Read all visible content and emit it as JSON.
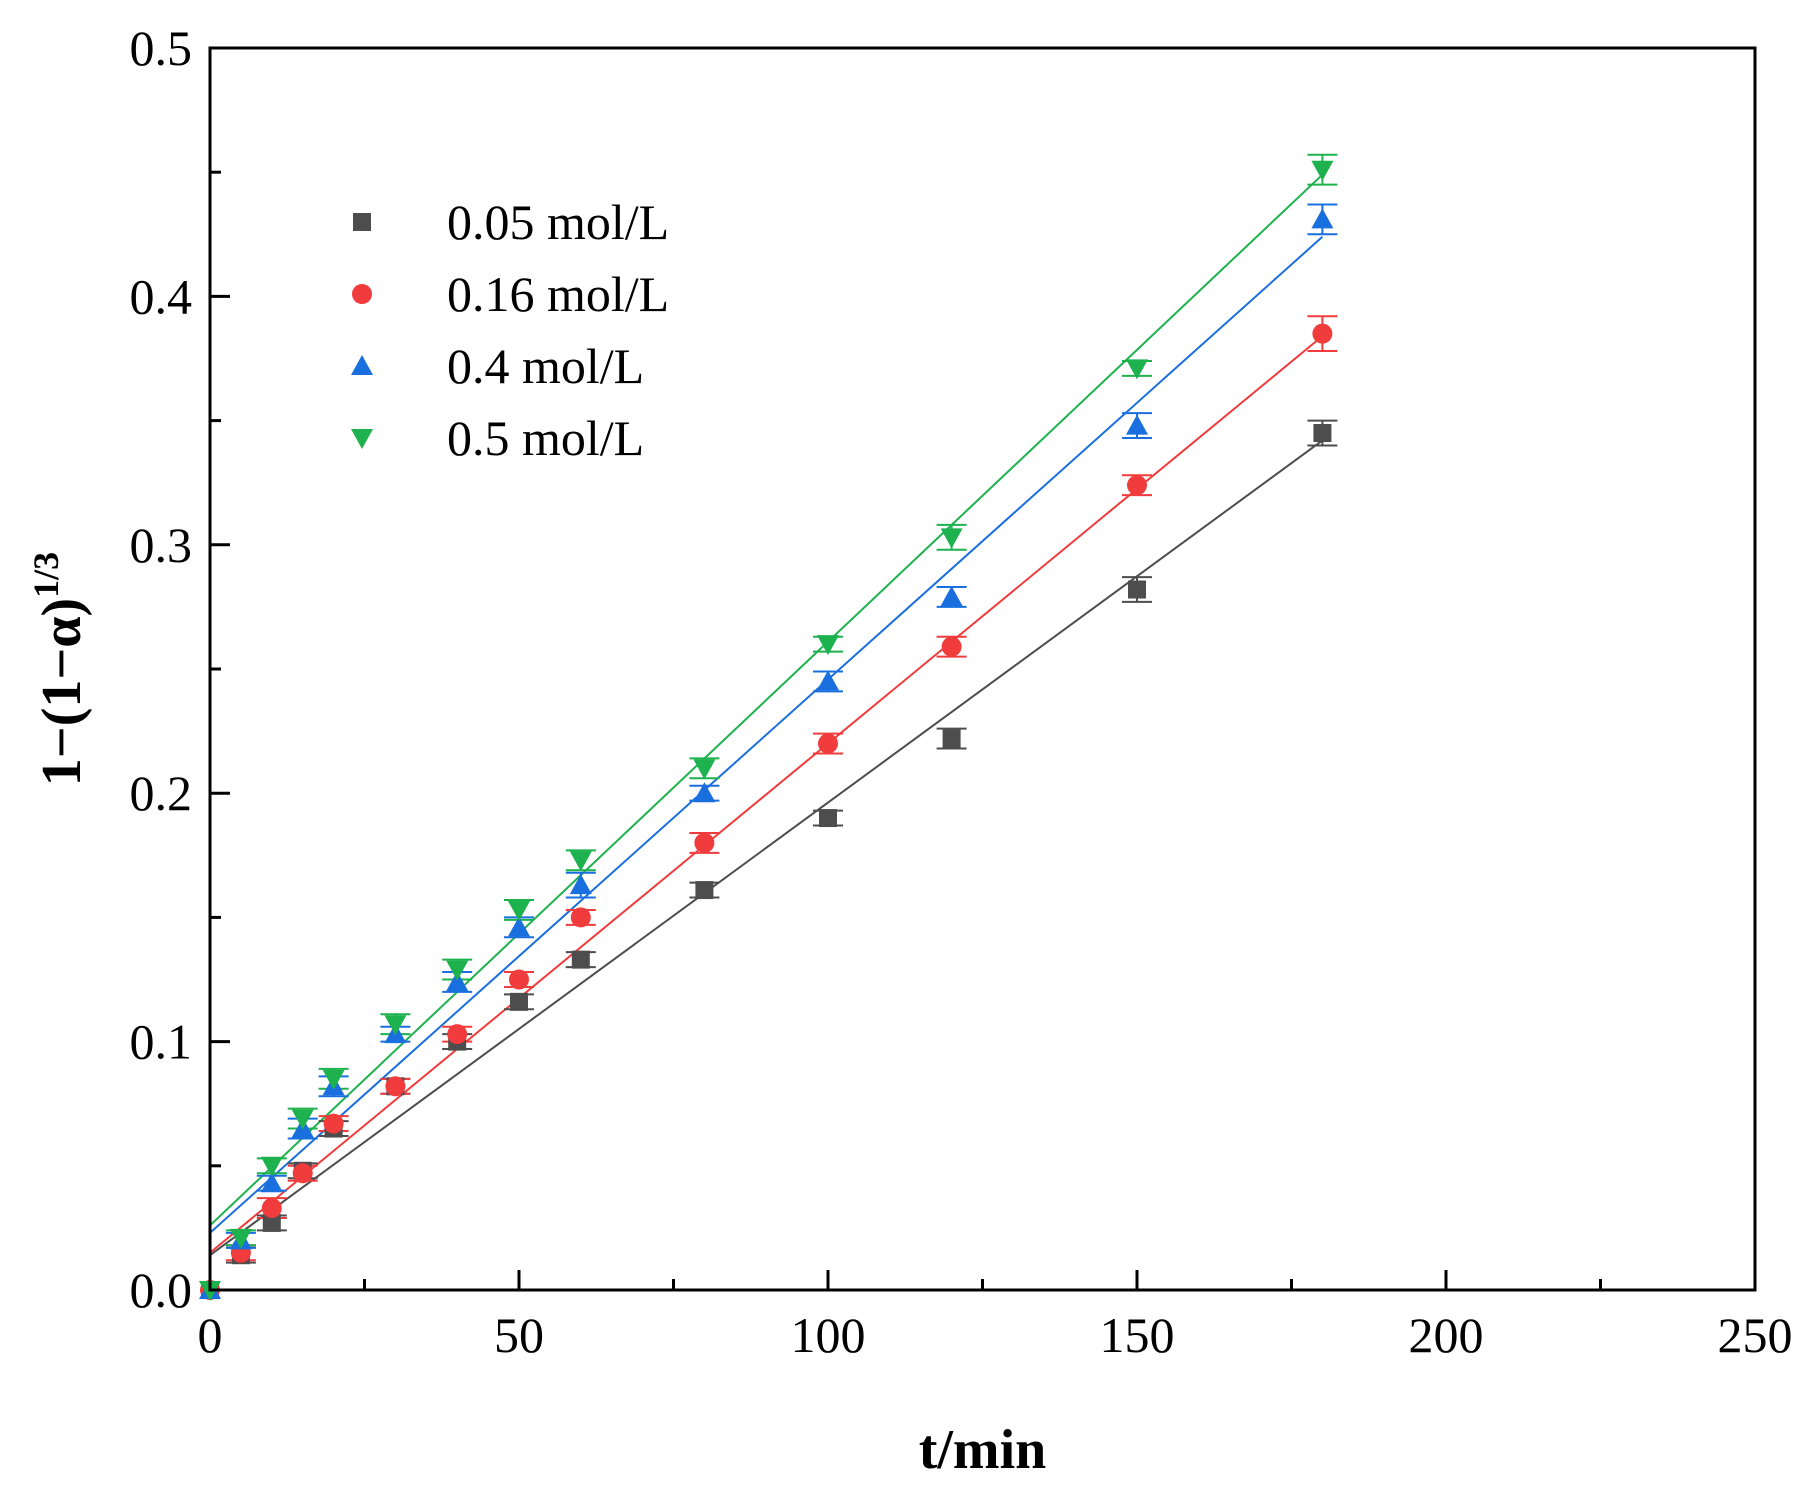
{
  "chart_data": {
    "type": "scatter",
    "xlabel": "t/min",
    "ylabel": "1−(1−α)",
    "ylabel_sup": "1/3",
    "xlim": [
      0,
      250
    ],
    "ylim": [
      0,
      0.5
    ],
    "x_ticks": [
      0,
      50,
      100,
      150,
      200,
      250
    ],
    "x_tick_labels": [
      "0",
      "50",
      "100",
      "150",
      "200",
      "250"
    ],
    "x_minor_ticks": [
      25,
      75,
      125,
      175,
      225
    ],
    "y_ticks": [
      0,
      0.1,
      0.2,
      0.3,
      0.4,
      0.5
    ],
    "y_tick_labels": [
      "0.0",
      "0.1",
      "0.2",
      "0.3",
      "0.4",
      "0.5"
    ],
    "y_minor_ticks": [
      0.05,
      0.15,
      0.25,
      0.35,
      0.45
    ],
    "grid": false,
    "legend_position": "top-left",
    "x": [
      0,
      5,
      10,
      15,
      20,
      30,
      40,
      50,
      60,
      80,
      100,
      120,
      150,
      180
    ],
    "series": [
      {
        "name": "0.05 mol/L",
        "color": "#4d4d4d",
        "marker": "square",
        "values": [
          0,
          0.014,
          0.027,
          0.048,
          0.065,
          0.082,
          0.1,
          0.116,
          0.133,
          0.161,
          0.19,
          0.222,
          0.282,
          0.345
        ],
        "errors": [
          0,
          0.003,
          0.003,
          0.003,
          0.003,
          0.003,
          0.003,
          0.003,
          0.003,
          0.003,
          0.003,
          0.004,
          0.005,
          0.005
        ],
        "fit": [
          0.014,
          0.342
        ]
      },
      {
        "name": "0.16 mol/L",
        "color": "#f03c3c",
        "marker": "circle",
        "values": [
          0,
          0.015,
          0.033,
          0.047,
          0.067,
          0.082,
          0.103,
          0.125,
          0.15,
          0.18,
          0.22,
          0.259,
          0.324,
          0.385
        ],
        "errors": [
          0,
          0.003,
          0.004,
          0.003,
          0.003,
          0.003,
          0.003,
          0.003,
          0.003,
          0.004,
          0.004,
          0.004,
          0.004,
          0.007
        ],
        "fit": [
          0.015,
          0.384
        ]
      },
      {
        "name": "0.4 mol/L",
        "color": "#1a6fdf",
        "marker": "triangle-up",
        "values": [
          0,
          0.02,
          0.043,
          0.065,
          0.082,
          0.103,
          0.124,
          0.146,
          0.163,
          0.2,
          0.245,
          0.279,
          0.348,
          0.431
        ],
        "errors": [
          0,
          0.003,
          0.003,
          0.004,
          0.004,
          0.003,
          0.004,
          0.004,
          0.005,
          0.003,
          0.004,
          0.004,
          0.005,
          0.006
        ],
        "fit": [
          0.023,
          0.424
        ]
      },
      {
        "name": "0.5 mol/L",
        "color": "#1db24e",
        "marker": "triangle-down",
        "values": [
          0,
          0.021,
          0.05,
          0.069,
          0.085,
          0.107,
          0.129,
          0.153,
          0.173,
          0.21,
          0.26,
          0.303,
          0.371,
          0.451
        ],
        "errors": [
          0,
          0.003,
          0.003,
          0.004,
          0.004,
          0.004,
          0.004,
          0.004,
          0.004,
          0.004,
          0.003,
          0.005,
          0.003,
          0.006
        ],
        "fit": [
          0.026,
          0.449
        ]
      }
    ]
  }
}
